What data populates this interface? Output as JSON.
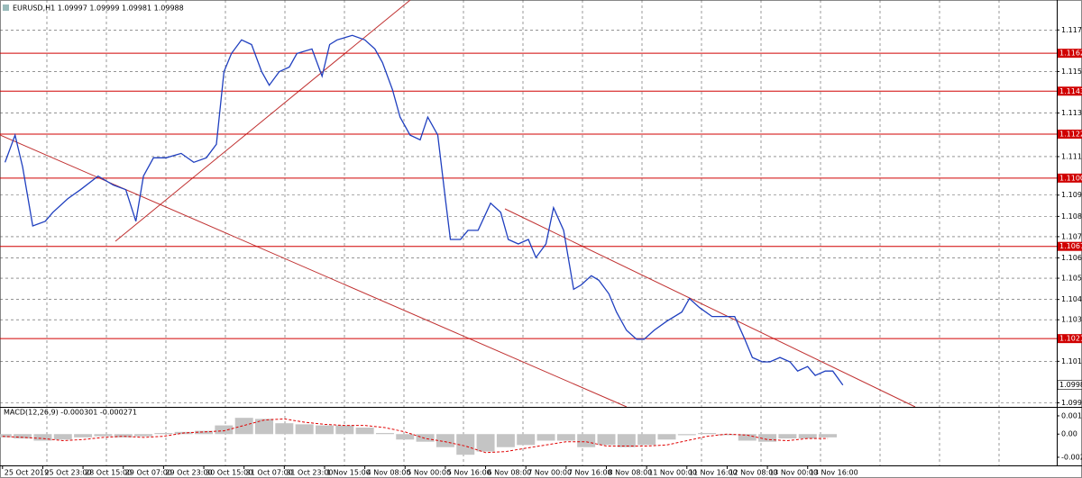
{
  "chart_data": [
    {
      "type": "line",
      "title": "EURUSD,H1  1.09997 1.09999 1.09981 1.09988",
      "x": [
        1,
        5,
        8,
        12,
        17,
        20,
        26,
        31,
        38,
        44,
        49,
        53,
        56,
        60,
        65,
        71,
        76,
        81,
        85,
        88,
        91,
        95,
        99,
        103,
        106,
        110,
        114,
        117,
        123,
        127,
        130,
        133,
        139,
        144,
        148,
        151,
        155,
        158,
        162,
        166,
        169,
        173,
        176,
        178,
        182,
        185,
        189,
        194,
        198,
        201,
        205,
        209,
        212,
        216,
        219,
        223,
        227,
        230,
        234,
        237,
        241,
        244,
        248,
        252,
        255,
        259,
        264,
        270,
        273,
        277,
        282,
        287,
        291,
        295,
        298,
        302,
        305,
        309,
        313,
        316,
        320,
        323,
        327,
        330,
        334
      ],
      "values": [
        1.11087,
        1.11221,
        1.11064,
        1.10773,
        1.10796,
        1.1084,
        1.10908,
        1.10952,
        1.11019,
        1.10975,
        1.10952,
        1.10796,
        1.11019,
        1.11109,
        1.11109,
        1.11131,
        1.11087,
        1.11109,
        1.11176,
        1.11534,
        1.11624,
        1.11691,
        1.11668,
        1.11534,
        1.11467,
        1.11534,
        1.11557,
        1.11624,
        1.11646,
        1.11512,
        1.11668,
        1.11691,
        1.11713,
        1.11691,
        1.11646,
        1.11579,
        1.11445,
        1.1131,
        1.11221,
        1.11198,
        1.1131,
        1.11221,
        1.10908,
        1.10706,
        1.10706,
        1.10751,
        1.10751,
        1.10885,
        1.1084,
        1.10706,
        1.10684,
        1.10706,
        1.10617,
        1.10684,
        1.10863,
        1.10751,
        1.1046,
        1.10482,
        1.10527,
        1.10505,
        1.10438,
        1.10348,
        1.10258,
        1.10214,
        1.10214,
        1.10258,
        1.10303,
        1.10348,
        1.10415,
        1.1037,
        1.10326,
        1.10326,
        1.10326,
        1.10214,
        1.10124,
        1.10102,
        1.10102,
        1.10124,
        1.10102,
        1.10057,
        1.10079,
        1.10035,
        1.10057,
        1.10057,
        1.09988
      ],
      "color": "#1f3fbf",
      "xlim": [
        -1,
        419
      ],
      "xticks": [
        {
          "value": 0,
          "label": "25 Oct 2019"
        },
        {
          "value": 16,
          "label": "25 Oct 23:00"
        },
        {
          "value": 32,
          "label": "28 Oct 15:00"
        },
        {
          "value": 48,
          "label": "29 Oct 07:00"
        },
        {
          "value": 64,
          "label": "29 Oct 23:00"
        },
        {
          "value": 80,
          "label": "30 Oct 15:00"
        },
        {
          "value": 96,
          "label": "31 Oct 07:00"
        },
        {
          "value": 112,
          "label": "31 Oct 23:00"
        },
        {
          "value": 128,
          "label": "1 Nov 15:00"
        },
        {
          "value": 144,
          "label": "4 Nov 08:00"
        },
        {
          "value": 160,
          "label": "5 Nov 00:00"
        },
        {
          "value": 176,
          "label": "5 Nov 16:00"
        },
        {
          "value": 192,
          "label": "6 Nov 08:00"
        },
        {
          "value": 208,
          "label": "7 Nov 00:00"
        },
        {
          "value": 224,
          "label": "7 Nov 16:00"
        },
        {
          "value": 240,
          "label": "8 Nov 08:00"
        },
        {
          "value": 256,
          "label": "11 Nov 00:00"
        },
        {
          "value": 272,
          "label": "11 Nov 16:00"
        },
        {
          "value": 288,
          "label": "12 Nov 08:00"
        },
        {
          "value": 304,
          "label": "13 Nov 00:00"
        },
        {
          "value": 320,
          "label": "13 Nov 16:00"
        }
      ],
      "ylim": [
        1.0988,
        1.1187
      ],
      "yticks": [
        {
          "value": 1.1174,
          "label": "1.11740"
        },
        {
          "value": 1.11535,
          "label": "1.11535"
        },
        {
          "value": 1.1133,
          "label": "1.11330"
        },
        {
          "value": 1.11115,
          "label": "1.11115"
        },
        {
          "value": 1.10925,
          "label": "1.10925"
        },
        {
          "value": 1.1082,
          "label": "1.10820"
        },
        {
          "value": 1.1072,
          "label": "1.10720"
        },
        {
          "value": 1.10615,
          "label": "1.10615"
        },
        {
          "value": 1.10515,
          "label": "1.10515"
        },
        {
          "value": 1.1041,
          "label": "1.10410"
        },
        {
          "value": 1.1031,
          "label": "1.10310"
        },
        {
          "value": 1.10105,
          "label": "1.10105"
        },
        {
          "value": 1.099,
          "label": "1.09900"
        }
      ],
      "levels": [
        1.11625,
        1.11438,
        1.11226,
        1.11009,
        1.10672,
        1.10217
      ],
      "level_color": "#d00000",
      "last_value": 1.09988,
      "grid": true
    },
    {
      "type": "macd",
      "title": "MACD(12,26,9) -0.000301 -0.000271",
      "x": [
        0,
        8,
        16,
        24,
        32,
        40,
        48,
        56,
        64,
        72,
        80,
        88,
        96,
        104,
        112,
        120,
        128,
        136,
        144,
        152,
        160,
        168,
        176,
        184,
        192,
        200,
        208,
        216,
        224,
        232,
        240,
        248,
        256,
        264,
        272,
        280,
        288,
        296,
        304,
        312,
        320,
        328
      ],
      "values": [
        -0.0003,
        -0.0004,
        -0.0006,
        -0.0005,
        -0.0003,
        -0.0002,
        -0.0003,
        -0.0002,
        0.0001,
        0.0002,
        0.0003,
        0.0008,
        0.0015,
        0.0014,
        0.001,
        0.0009,
        0.0008,
        0.0008,
        0.0006,
        0.0001,
        -0.0005,
        -0.0007,
        -0.0012,
        -0.0019,
        -0.0016,
        -0.0012,
        -0.001,
        -0.0006,
        -0.0006,
        -0.0012,
        -0.001,
        -0.0012,
        -0.001,
        -0.0005,
        -0.0001,
        0.0001,
        -0.0001,
        -0.0006,
        -0.0007,
        -0.0004,
        -0.0004,
        -0.0003
      ],
      "color": "#c4c4c4",
      "signal": [
        -0.0002,
        -0.0003,
        -0.0004,
        -0.0006,
        -0.0005,
        -0.0003,
        -0.0002,
        -0.0003,
        -0.0002,
        0.0001,
        0.0002,
        0.0003,
        0.0008,
        0.0013,
        0.0014,
        0.0011,
        0.0009,
        0.0008,
        0.0008,
        0.0006,
        0.0002,
        -0.0004,
        -0.0007,
        -0.0011,
        -0.0017,
        -0.0016,
        -0.0013,
        -0.001,
        -0.0007,
        -0.0007,
        -0.0011,
        -0.0011,
        -0.0011,
        -0.001,
        -0.0006,
        -0.0002,
        0,
        -0.0001,
        -0.0005,
        -0.0006,
        -0.0004,
        -0.0004
      ],
      "signal_color": "#e00000",
      "xlim": [
        -1,
        419
      ],
      "ylim": [
        -0.00288,
        0.00234
      ],
      "yticks": [
        0.00168,
        {
          "value": 0,
          "label": "0.00"
        },
        -0.00213
      ]
    }
  ]
}
